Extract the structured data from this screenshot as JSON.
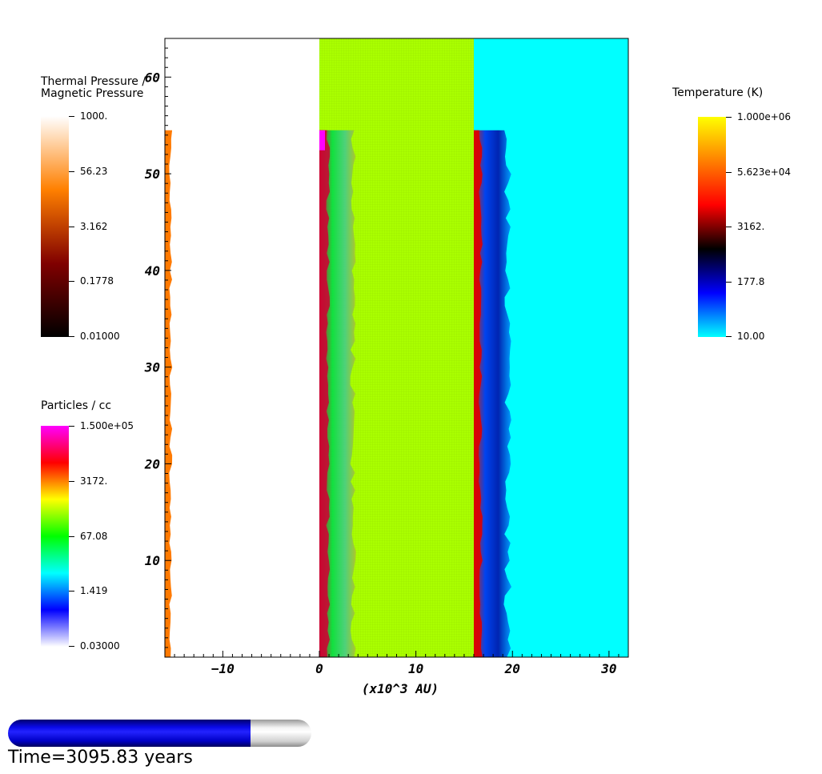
{
  "chart_data": {
    "type": "heatmap",
    "xlabel": "(x10^3 AU)",
    "xlim": [
      -16,
      32
    ],
    "ylim": [
      0,
      64
    ],
    "x_ticks": [
      -10,
      0,
      10,
      20,
      30
    ],
    "y_ticks": [
      10,
      20,
      30,
      40,
      50,
      60
    ],
    "panels": [
      {
        "field": "Thermal Pressure / Magnetic Pressure",
        "x_range": [
          -16,
          0
        ],
        "background": "#ffffff",
        "feature": {
          "shape": "thin vertical strip",
          "x": [
            -16,
            -15.4
          ],
          "y": [
            0,
            54.5
          ],
          "color": "#ff7a00"
        }
      },
      {
        "field": "Particles / cc",
        "x_range": [
          0,
          16
        ],
        "background": "#aaff00",
        "feature": {
          "shape": "filament layers",
          "x": [
            0,
            3.5
          ],
          "y": [
            0,
            54.5
          ],
          "colors": [
            "#ff00ff",
            "#cc0033",
            "#00ee00",
            "#00ddcc",
            "#888844"
          ]
        }
      },
      {
        "field": "Temperature (K)",
        "x_range": [
          16,
          32
        ],
        "background": "#00ffff",
        "feature": {
          "shape": "filament layers",
          "x": [
            16,
            19.5
          ],
          "y": [
            0,
            54.5
          ],
          "colors": [
            "#dd0000",
            "#ff8800",
            "#0000cc",
            "#0044ff",
            "#0099ff"
          ]
        }
      }
    ]
  },
  "colorbars": {
    "pressure_ratio": {
      "title_line1": "Thermal Pressure /",
      "title_line2": "Magnetic Pressure",
      "labels": [
        "1000.",
        "56.23",
        "3.162",
        "0.1778",
        "0.01000"
      ],
      "stops": [
        "#ffffff",
        "#ff8000",
        "#800000",
        "#000000"
      ]
    },
    "density": {
      "title": "Particles / cc",
      "labels": [
        "1.500e+05",
        "3172.",
        "67.08",
        "1.419",
        "0.03000"
      ],
      "stops": [
        "#ff00ff",
        "#ff0000",
        "#ffff00",
        "#00ff00",
        "#00ffff",
        "#0000ff",
        "#ffffff"
      ]
    },
    "temperature": {
      "title": "Temperature (K)",
      "labels": [
        "1.000e+06",
        "5.623e+04",
        "3162.",
        "177.8",
        "10.00"
      ],
      "stops": [
        "#ffff00",
        "#ff8000",
        "#ff0000",
        "#000000",
        "#0000ff",
        "#00ffff"
      ]
    }
  },
  "time": {
    "label": "Time=3095.83 years",
    "progress": 0.8,
    "fill_color": "#0000ff"
  }
}
